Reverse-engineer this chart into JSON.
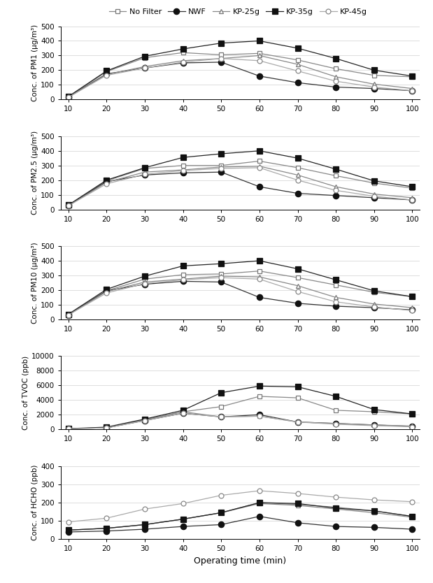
{
  "x": [
    10,
    20,
    30,
    40,
    50,
    60,
    70,
    80,
    90,
    100
  ],
  "pm1": {
    "ylabel": "Conc. of PM1 (μg/m³)",
    "ylim": [
      0,
      500
    ],
    "yticks": [
      0,
      100,
      200,
      300,
      400,
      500
    ],
    "No Filter": [
      15,
      190,
      285,
      320,
      305,
      315,
      270,
      210,
      165,
      155
    ],
    "NWF": [
      15,
      175,
      215,
      250,
      255,
      160,
      115,
      85,
      75,
      60
    ],
    "KP-25g": [
      15,
      170,
      225,
      265,
      280,
      300,
      240,
      155,
      105,
      75
    ],
    "KP-35g": [
      20,
      195,
      295,
      345,
      385,
      400,
      350,
      280,
      200,
      160
    ],
    "KP-45g": [
      15,
      165,
      215,
      255,
      280,
      265,
      195,
      125,
      85,
      60
    ]
  },
  "pm25": {
    "ylabel": "Conc. of PM2.5 (μg/m³)",
    "ylim": [
      0,
      500
    ],
    "yticks": [
      0,
      100,
      200,
      300,
      400,
      500
    ],
    "No Filter": [
      25,
      195,
      280,
      300,
      300,
      330,
      285,
      230,
      180,
      145
    ],
    "NWF": [
      25,
      190,
      235,
      250,
      255,
      155,
      110,
      95,
      80,
      65
    ],
    "KP-25g": [
      25,
      185,
      255,
      270,
      290,
      295,
      235,
      155,
      105,
      80
    ],
    "KP-35g": [
      30,
      200,
      285,
      355,
      380,
      400,
      350,
      275,
      195,
      155
    ],
    "KP-45g": [
      25,
      175,
      240,
      265,
      280,
      285,
      200,
      130,
      90,
      65
    ]
  },
  "pm10": {
    "ylabel": "Conc. of PM10 (μg/m³)",
    "ylim": [
      0,
      500
    ],
    "yticks": [
      0,
      100,
      200,
      300,
      400,
      500
    ],
    "No Filter": [
      30,
      195,
      275,
      305,
      310,
      330,
      285,
      235,
      185,
      155
    ],
    "NWF": [
      30,
      195,
      240,
      260,
      255,
      150,
      110,
      90,
      80,
      65
    ],
    "KP-25g": [
      30,
      190,
      255,
      275,
      295,
      290,
      230,
      150,
      105,
      80
    ],
    "KP-35g": [
      35,
      205,
      295,
      365,
      380,
      400,
      345,
      270,
      195,
      155
    ],
    "KP-45g": [
      30,
      180,
      245,
      270,
      285,
      275,
      190,
      120,
      85,
      60
    ]
  },
  "tvoc": {
    "ylabel": "Conc. of TVOC (ppb)",
    "ylim": [
      0,
      10000
    ],
    "yticks": [
      0,
      2000,
      4000,
      6000,
      8000,
      10000
    ],
    "No Filter": [
      100,
      200,
      1300,
      2400,
      3100,
      4500,
      4300,
      2600,
      2400,
      2100
    ],
    "NWF": [
      100,
      200,
      1200,
      2200,
      1700,
      2000,
      1000,
      800,
      600,
      400
    ],
    "KP-25g": [
      100,
      200,
      1300,
      2400,
      1700,
      1800,
      1000,
      800,
      600,
      450
    ],
    "KP-35g": [
      100,
      300,
      1400,
      2600,
      5000,
      5900,
      5800,
      4500,
      2700,
      2100
    ],
    "KP-45g": [
      100,
      200,
      1200,
      2200,
      1700,
      1800,
      1000,
      700,
      500,
      350
    ]
  },
  "hcho": {
    "ylabel": "Conc. of HCHO (ppb)",
    "ylim": [
      0,
      400
    ],
    "yticks": [
      0,
      100,
      200,
      300,
      400
    ],
    "No Filter": [
      50,
      60,
      80,
      110,
      145,
      200,
      190,
      175,
      155,
      125
    ],
    "NWF": [
      40,
      45,
      55,
      70,
      80,
      125,
      90,
      70,
      65,
      55
    ],
    "KP-25g": [
      50,
      60,
      80,
      110,
      145,
      195,
      185,
      165,
      145,
      120
    ],
    "KP-35g": [
      50,
      60,
      80,
      110,
      145,
      200,
      195,
      170,
      155,
      125
    ],
    "KP-45g": [
      95,
      115,
      165,
      195,
      240,
      265,
      250,
      230,
      215,
      205
    ]
  },
  "xlabel": "Operating time (min)"
}
